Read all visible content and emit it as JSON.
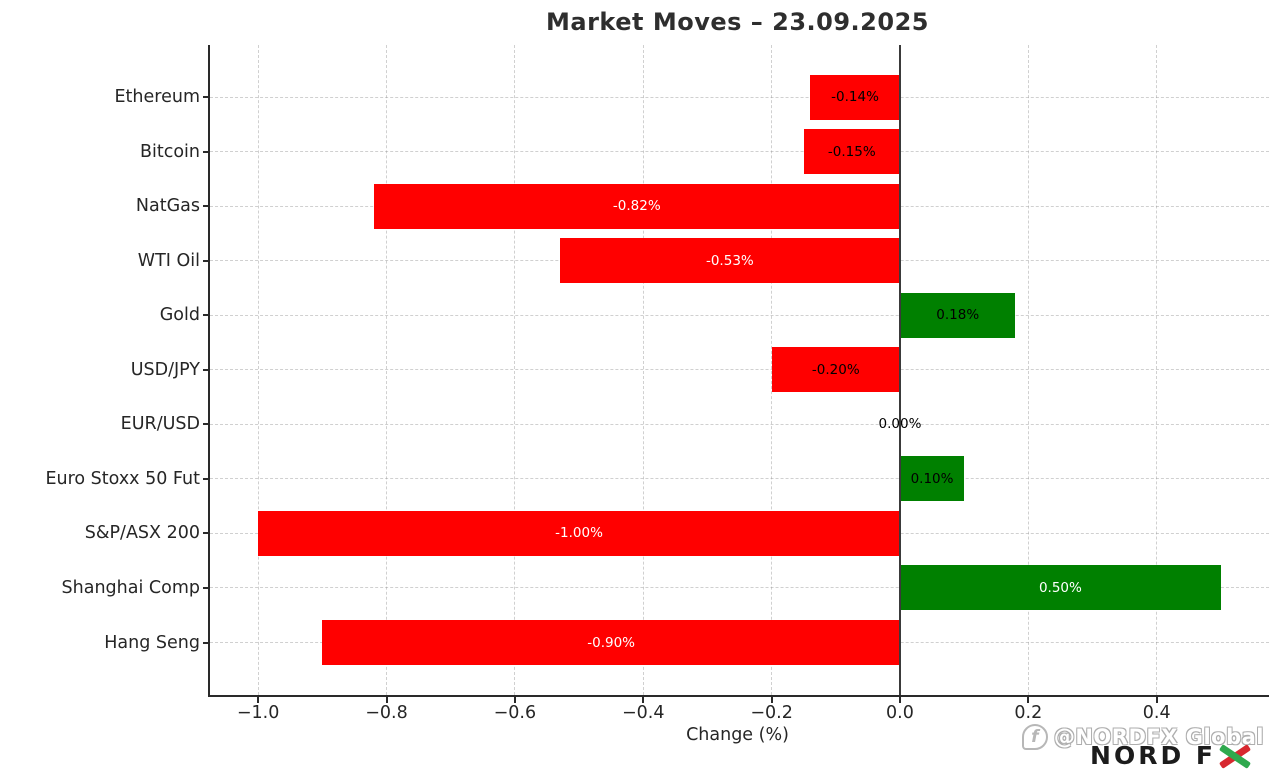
{
  "title": "Market Moves – 23.09.2025",
  "chart_data": {
    "type": "bar",
    "orientation": "horizontal",
    "title": "Market Moves – 23.09.2025",
    "xlabel": "Change (%)",
    "categories": [
      "Ethereum",
      "Bitcoin",
      "NatGas",
      "WTI Oil",
      "Gold",
      "USD/JPY",
      "EUR/USD",
      "Euro Stoxx 50 Fut",
      "S&P/ASX 200",
      "Shanghai Comp",
      "Hang Seng"
    ],
    "values": [
      -0.14,
      -0.15,
      -0.82,
      -0.53,
      0.18,
      -0.2,
      0.0,
      0.1,
      -1.0,
      0.5,
      -0.9
    ],
    "bar_labels": [
      "-0.14%",
      "-0.15%",
      "-0.82%",
      "-0.53%",
      "0.18%",
      "-0.20%",
      "0.00%",
      "0.10%",
      "-1.00%",
      "0.50%",
      "-0.90%"
    ],
    "xlim": [
      -1.075,
      0.575
    ],
    "xticks": [
      -1.0,
      -0.8,
      -0.6,
      -0.4,
      -0.2,
      0.0,
      0.2,
      0.4
    ],
    "xtick_labels": [
      "−1.0",
      "−0.8",
      "−0.6",
      "−0.4",
      "−0.2",
      "0.0",
      "0.2",
      "0.4"
    ],
    "colors": {
      "positive": "#008000",
      "negative": "#ff0000",
      "zero_line": "#3a3a3a"
    },
    "grid": "dashed",
    "legend_position": "none"
  },
  "watermark": {
    "icon": "facebook-icon",
    "icon_glyph": "f",
    "handle": "@NORDFX Global",
    "logo_text": "NORD FX",
    "logo_prefix": "NORD F"
  }
}
